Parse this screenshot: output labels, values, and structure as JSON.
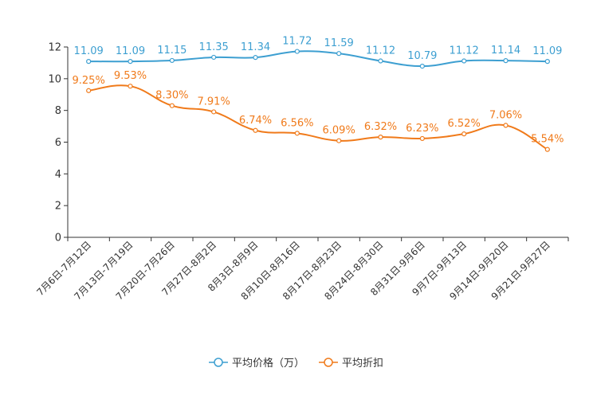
{
  "chart_data": {
    "type": "line",
    "title": "",
    "categories": [
      "7月6日-7月12日",
      "7月13日-7月19日",
      "7月20日-7月26日",
      "7月27日-8月2日",
      "8月3日-8月9日",
      "8月10日-8月16日",
      "8月17日-8月23日",
      "8月24日-8月30日",
      "8月31日-9月6日",
      "9月7日-9月13日",
      "9月14日-9月20日",
      "9月21日-9月27日"
    ],
    "ylim": [
      0,
      12
    ],
    "yticks": [
      "0",
      "2",
      "4",
      "6",
      "8",
      "10",
      "12"
    ],
    "series": [
      {
        "name": "平均价格（万）",
        "color": "#3d9fd1",
        "values": [
          11.09,
          11.09,
          11.15,
          11.35,
          11.34,
          11.72,
          11.59,
          11.12,
          10.79,
          11.12,
          11.14,
          11.09
        ],
        "labels": [
          "11.09",
          "11.09",
          "11.15",
          "11.35",
          "11.34",
          "11.72",
          "11.59",
          "11.12",
          "10.79",
          "11.12",
          "11.14",
          "11.09"
        ]
      },
      {
        "name": "平均折扣",
        "color": "#f07a1a",
        "values": [
          9.25,
          9.53,
          8.3,
          7.91,
          6.74,
          6.56,
          6.09,
          6.32,
          6.23,
          6.52,
          7.06,
          5.54
        ],
        "labels": [
          "9.25%",
          "9.53%",
          "8.30%",
          "7.91%",
          "6.74%",
          "6.56%",
          "6.09%",
          "6.32%",
          "6.23%",
          "6.52%",
          "7.06%",
          "5.54%"
        ]
      }
    ],
    "legend_position": "bottom-center"
  }
}
